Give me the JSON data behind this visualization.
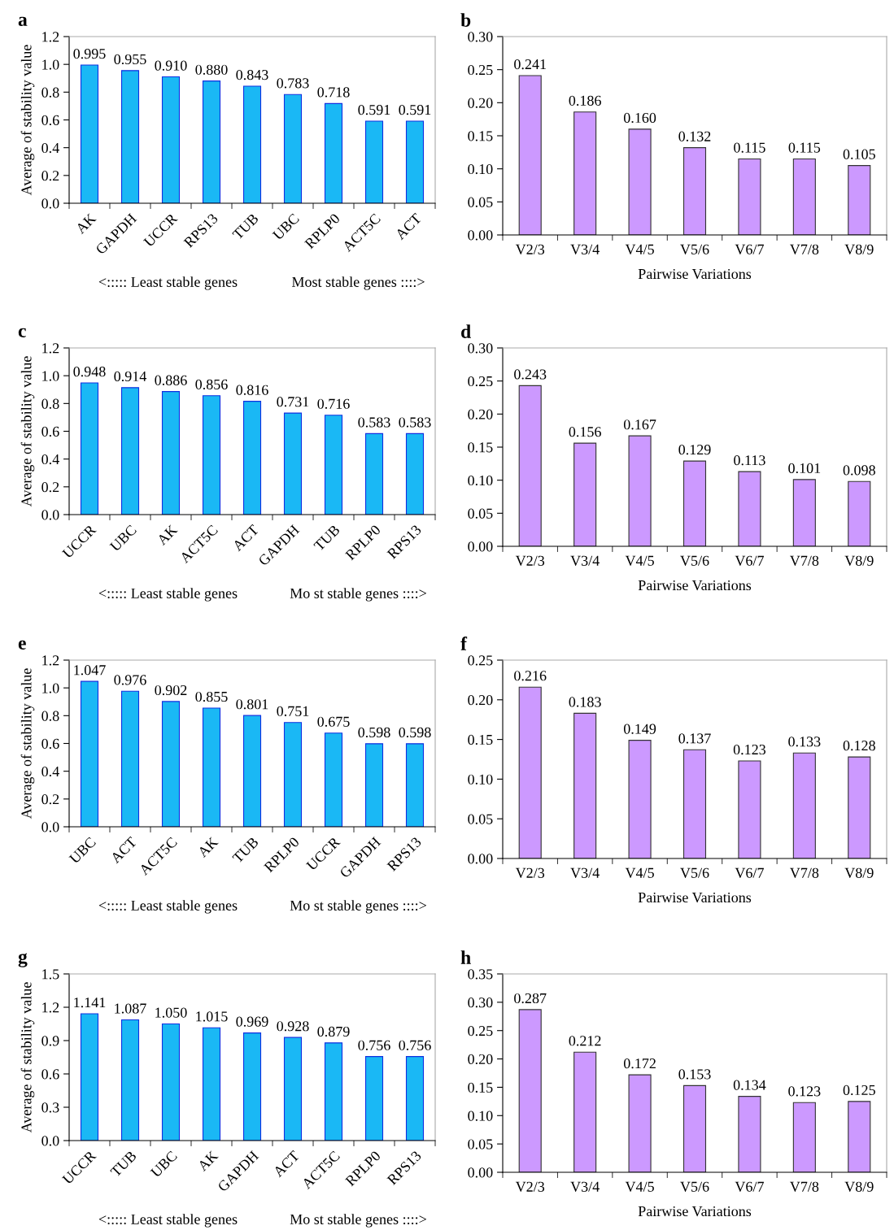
{
  "chart_data": [
    {
      "type": "bar",
      "title": "a",
      "ylabel": "Average of stability value",
      "categories": [
        "AK",
        "GAPDH",
        "UCCR",
        "RPS13",
        "TUB",
        "UBC",
        "RPLP0",
        "ACT5C",
        "ACT"
      ],
      "values": [
        0.995,
        0.955,
        0.91,
        0.88,
        0.843,
        0.783,
        0.718,
        0.591,
        0.591
      ],
      "value_labels": [
        "0.995",
        "0.955",
        "0.910",
        "0.880",
        "0.843",
        "0.783",
        "0.718",
        "0.591",
        "0.591"
      ],
      "color": "#1ab8f5",
      "ylim": [
        0,
        1.2
      ],
      "yticks": [
        {
          "value": 0,
          "label": "0.0"
        },
        {
          "value": 0.2,
          "label": "0.2"
        },
        {
          "value": 0.4,
          "label": "0.4"
        },
        {
          "value": 0.6,
          "label": "0.6"
        },
        {
          "value": 0.8,
          "label": "0.8"
        },
        {
          "value": 1.0,
          "label": "1.0"
        },
        {
          "value": 1.2,
          "label": "1.2"
        }
      ],
      "annotations": [
        "<::::: Least stable genes",
        "Most stable genes ::::>"
      ]
    },
    {
      "type": "bar",
      "title": "b",
      "xlabel": "Pairwise Variations",
      "categories": [
        "V2/3",
        "V3/4",
        "V4/5",
        "V5/6",
        "V6/7",
        "V7/8",
        "V8/9"
      ],
      "values": [
        0.241,
        0.186,
        0.16,
        0.132,
        0.115,
        0.115,
        0.105
      ],
      "value_labels": [
        "0.241",
        "0.186",
        "0.160",
        "0.132",
        "0.115",
        "0.115",
        "0.105"
      ],
      "color": "#cc99ff",
      "ylim": [
        0,
        0.3
      ],
      "yticks": [
        {
          "value": 0,
          "label": "0.00"
        },
        {
          "value": 0.05,
          "label": "0.05"
        },
        {
          "value": 0.1,
          "label": "0.10"
        },
        {
          "value": 0.15,
          "label": "0.15"
        },
        {
          "value": 0.2,
          "label": "0.20"
        },
        {
          "value": 0.25,
          "label": "0.25"
        },
        {
          "value": 0.3,
          "label": "0.30"
        }
      ]
    },
    {
      "type": "bar",
      "title": "c",
      "ylabel": "Average of stability value",
      "categories": [
        "UCCR",
        "UBC",
        "AK",
        "ACT5C",
        "ACT",
        "GAPDH",
        "TUB",
        "RPLP0",
        "RPS13"
      ],
      "values": [
        0.948,
        0.914,
        0.886,
        0.856,
        0.816,
        0.731,
        0.716,
        0.583,
        0.583
      ],
      "value_labels": [
        "0.948",
        "0.914",
        "0.886",
        "0.856",
        "0.816",
        "0.731",
        "0.716",
        "0.583",
        "0.583"
      ],
      "color": "#1ab8f5",
      "ylim": [
        0,
        1.2
      ],
      "yticks": [
        {
          "value": 0,
          "label": "0.0"
        },
        {
          "value": 0.2,
          "label": "0.2"
        },
        {
          "value": 0.4,
          "label": "0.4"
        },
        {
          "value": 0.6,
          "label": "0.6"
        },
        {
          "value": 0.8,
          "label": "0.8"
        },
        {
          "value": 1.0,
          "label": "1.0"
        },
        {
          "value": 1.2,
          "label": "1.2"
        }
      ],
      "annotations": [
        "<::::: Least stable genes",
        "Mo st stable genes ::::>"
      ]
    },
    {
      "type": "bar",
      "title": "d",
      "xlabel": "Pairwise Variations",
      "categories": [
        "V2/3",
        "V3/4",
        "V4/5",
        "V5/6",
        "V6/7",
        "V7/8",
        "V8/9"
      ],
      "values": [
        0.243,
        0.156,
        0.167,
        0.129,
        0.113,
        0.101,
        0.098
      ],
      "value_labels": [
        "0.243",
        "0.156",
        "0.167",
        "0.129",
        "0.113",
        "0.101",
        "0.098"
      ],
      "color": "#cc99ff",
      "ylim": [
        0,
        0.3
      ],
      "yticks": [
        {
          "value": 0,
          "label": "0.00"
        },
        {
          "value": 0.05,
          "label": "0.05"
        },
        {
          "value": 0.1,
          "label": "0.10"
        },
        {
          "value": 0.15,
          "label": "0.15"
        },
        {
          "value": 0.2,
          "label": "0.20"
        },
        {
          "value": 0.25,
          "label": "0.25"
        },
        {
          "value": 0.3,
          "label": "0.30"
        }
      ]
    },
    {
      "type": "bar",
      "title": "e",
      "ylabel": "Average of stability value",
      "categories": [
        "UBC",
        "ACT",
        "ACT5C",
        "AK",
        "TUB",
        "RPLP0",
        "UCCR",
        "GAPDH",
        "RPS13"
      ],
      "values": [
        1.047,
        0.976,
        0.902,
        0.855,
        0.801,
        0.751,
        0.675,
        0.598,
        0.598
      ],
      "value_labels": [
        "1.047",
        "0.976",
        "0.902",
        "0.855",
        "0.801",
        "0.751",
        "0.675",
        "0.598",
        "0.598"
      ],
      "color": "#1ab8f5",
      "ylim": [
        0,
        1.2
      ],
      "yticks": [
        {
          "value": 0,
          "label": "0.0"
        },
        {
          "value": 0.2,
          "label": "0.2"
        },
        {
          "value": 0.4,
          "label": "0.4"
        },
        {
          "value": 0.6,
          "label": "0.6"
        },
        {
          "value": 0.8,
          "label": "0.8"
        },
        {
          "value": 1.0,
          "label": "1.0"
        },
        {
          "value": 1.2,
          "label": "1.2"
        }
      ],
      "annotations": [
        "<::::: Least stable genes",
        "Mo st stable genes ::::>"
      ]
    },
    {
      "type": "bar",
      "title": "f",
      "xlabel": "Pairwise Variations",
      "categories": [
        "V2/3",
        "V3/4",
        "V4/5",
        "V5/6",
        "V6/7",
        "V7/8",
        "V8/9"
      ],
      "values": [
        0.216,
        0.183,
        0.149,
        0.137,
        0.123,
        0.133,
        0.128
      ],
      "value_labels": [
        "0.216",
        "0.183",
        "0.149",
        "0.137",
        "0.123",
        "0.133",
        "0.128"
      ],
      "color": "#cc99ff",
      "ylim": [
        0,
        0.25
      ],
      "yticks": [
        {
          "value": 0,
          "label": "0.00"
        },
        {
          "value": 0.05,
          "label": "0.05"
        },
        {
          "value": 0.1,
          "label": "0.10"
        },
        {
          "value": 0.15,
          "label": "0.15"
        },
        {
          "value": 0.2,
          "label": "0.20"
        },
        {
          "value": 0.25,
          "label": "0.25"
        }
      ]
    },
    {
      "type": "bar",
      "title": "g",
      "ylabel": "Average of stability value",
      "categories": [
        "UCCR",
        "TUB",
        "UBC",
        "AK",
        "GAPDH",
        "ACT",
        "ACT5C",
        "RPLP0",
        "RPS13"
      ],
      "values": [
        1.141,
        1.087,
        1.05,
        1.015,
        0.969,
        0.928,
        0.879,
        0.756,
        0.756
      ],
      "value_labels": [
        "1.141",
        "1.087",
        "1.050",
        "1.015",
        "0.969",
        "0.928",
        "0.879",
        "0.756",
        "0.756"
      ],
      "color": "#1ab8f5",
      "ylim": [
        0,
        1.5
      ],
      "yticks": [
        {
          "value": 0,
          "label": "0.0"
        },
        {
          "value": 0.3,
          "label": "0.3"
        },
        {
          "value": 0.6,
          "label": "0.6"
        },
        {
          "value": 0.9,
          "label": "0.9"
        },
        {
          "value": 1.2,
          "label": "1.2"
        },
        {
          "value": 1.5,
          "label": "1.5"
        }
      ],
      "annotations": [
        "<::::: Least stable genes",
        "Mo st stable genes ::::>"
      ]
    },
    {
      "type": "bar",
      "title": "h",
      "xlabel": "Pairwise Variations",
      "categories": [
        "V2/3",
        "V3/4",
        "V4/5",
        "V5/6",
        "V6/7",
        "V7/8",
        "V8/9"
      ],
      "values": [
        0.287,
        0.212,
        0.172,
        0.153,
        0.134,
        0.123,
        0.125
      ],
      "value_labels": [
        "0.287",
        "0.212",
        "0.172",
        "0.153",
        "0.134",
        "0.123",
        "0.125"
      ],
      "color": "#cc99ff",
      "ylim": [
        0,
        0.35
      ],
      "yticks": [
        {
          "value": 0,
          "label": "0.00"
        },
        {
          "value": 0.05,
          "label": "0.05"
        },
        {
          "value": 0.1,
          "label": "0.10"
        },
        {
          "value": 0.15,
          "label": "0.15"
        },
        {
          "value": 0.2,
          "label": "0.20"
        },
        {
          "value": 0.25,
          "label": "0.25"
        },
        {
          "value": 0.3,
          "label": "0.30"
        },
        {
          "value": 0.35,
          "label": "0.35"
        }
      ]
    }
  ]
}
